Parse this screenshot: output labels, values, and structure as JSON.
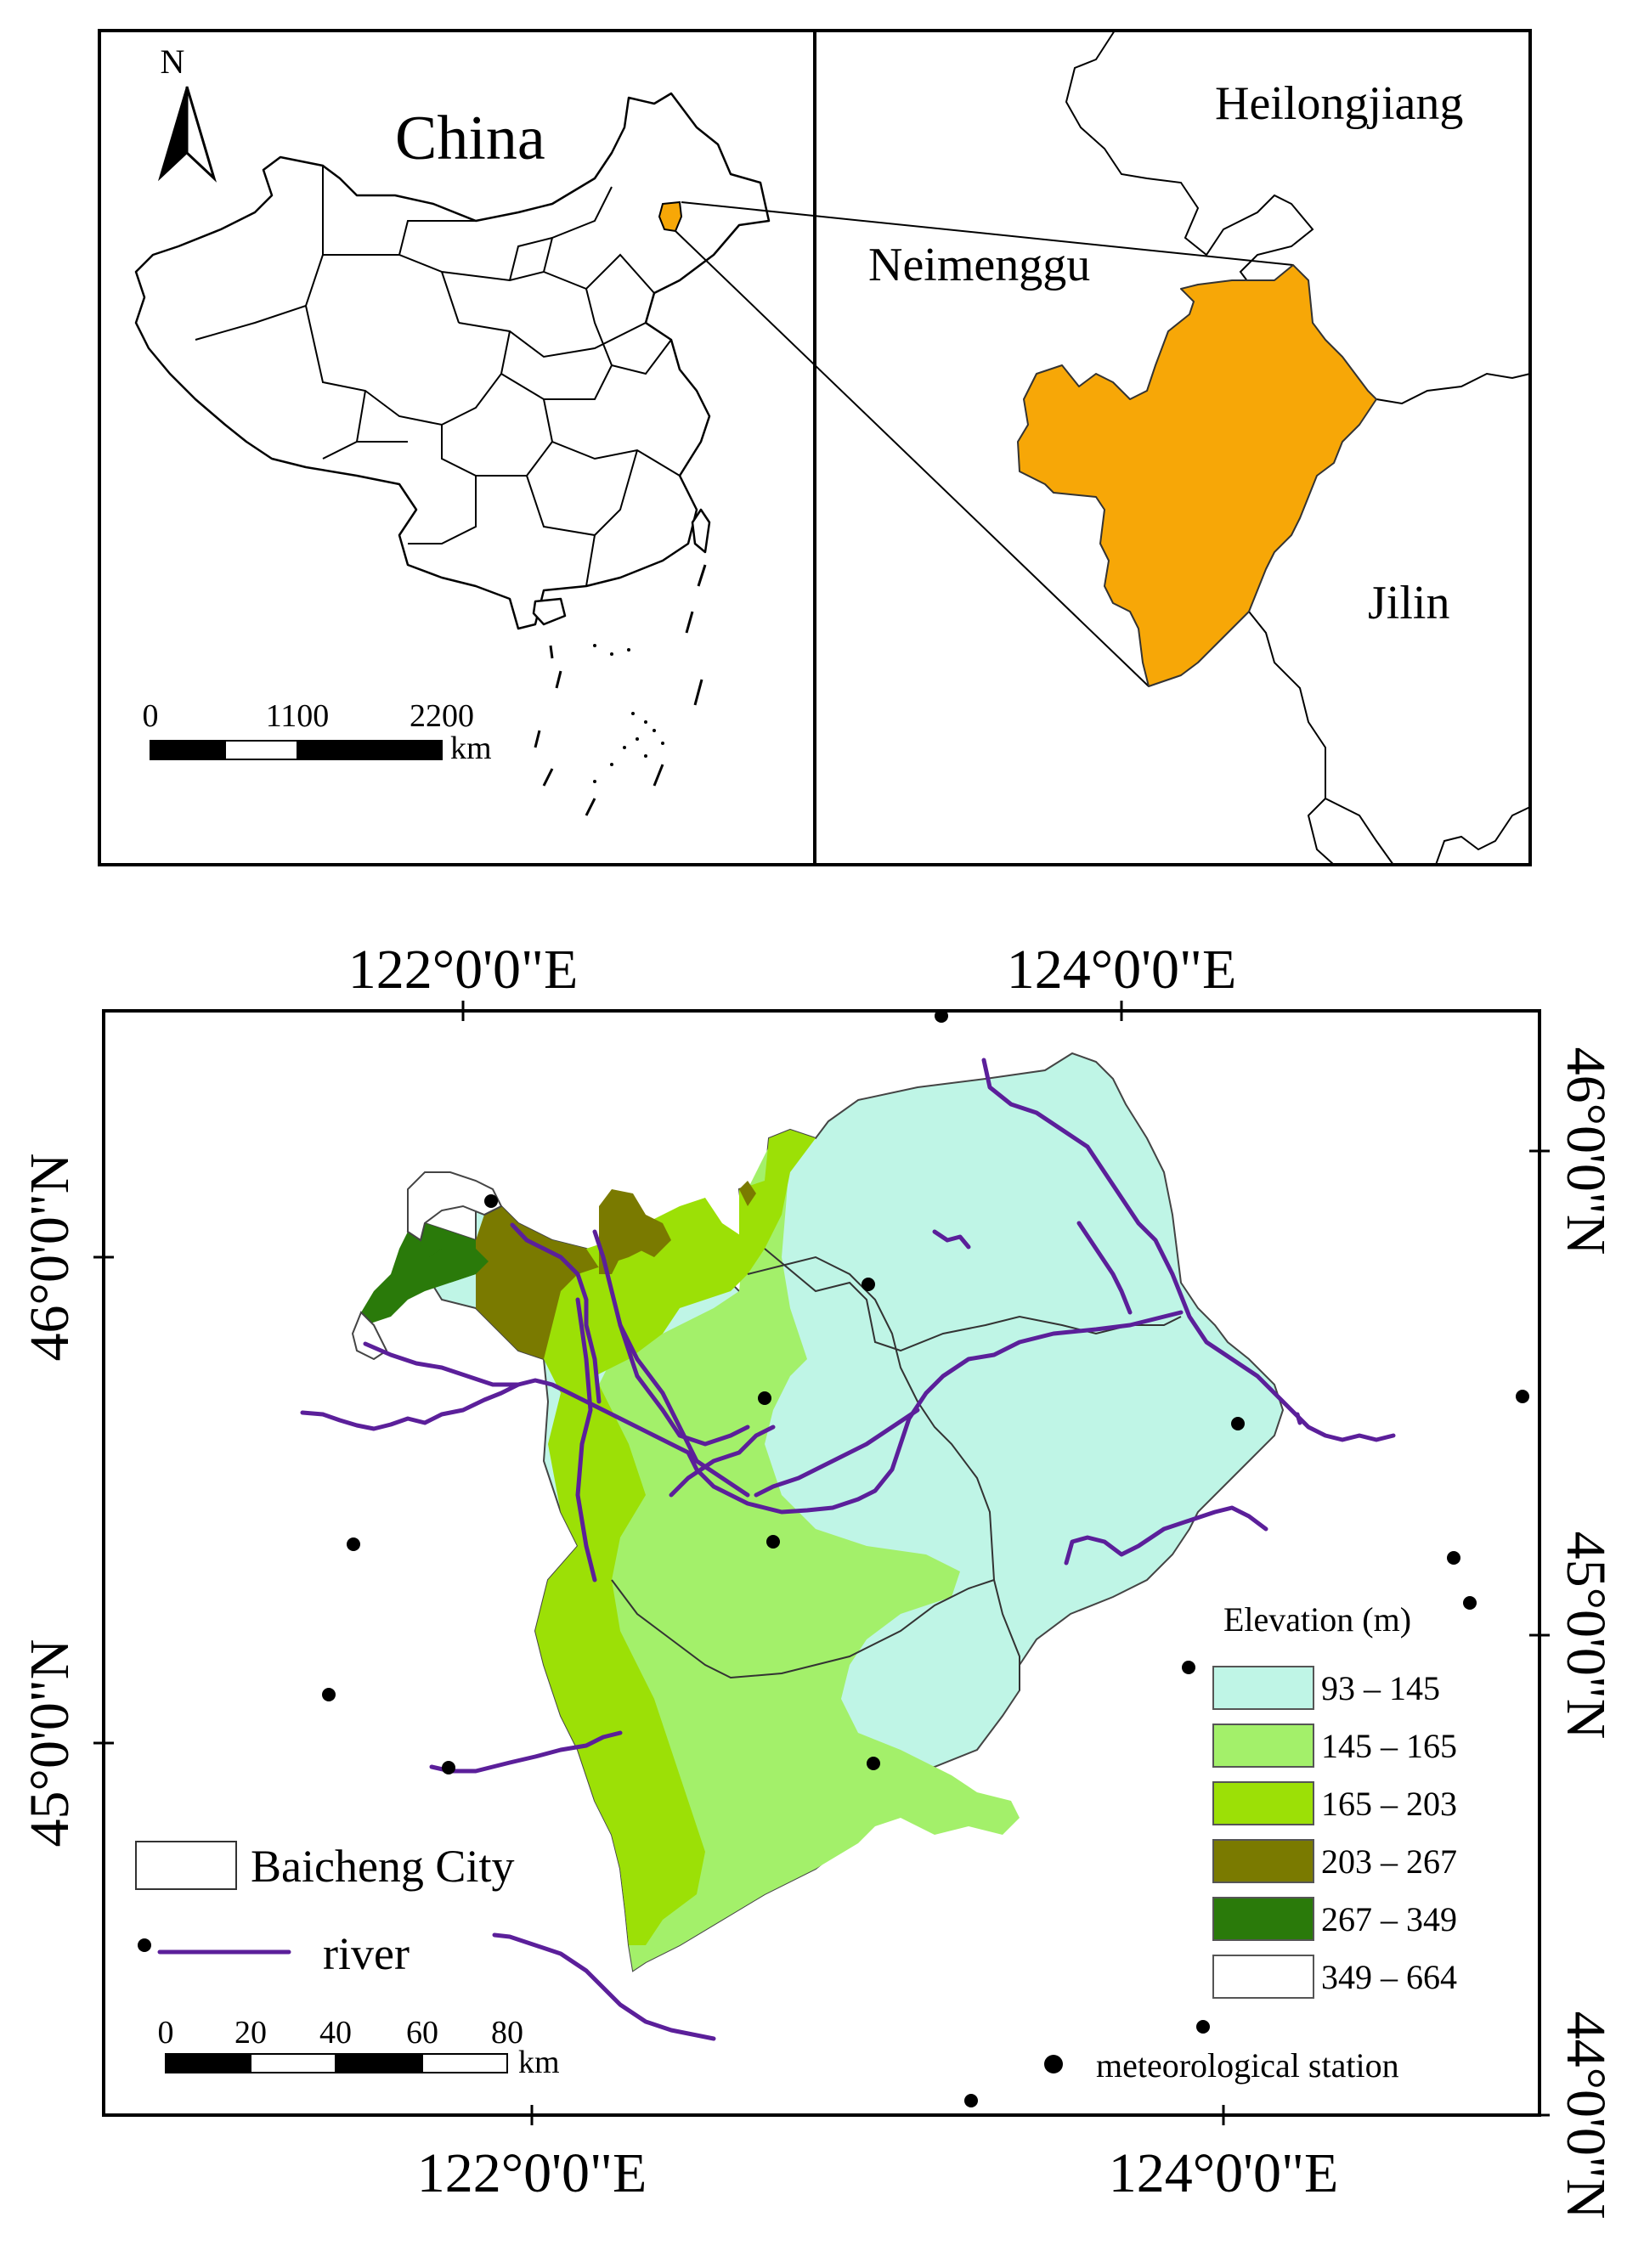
{
  "inset_china": {
    "title": "China",
    "north_label": "N",
    "scale_ticks": [
      "0",
      "1100",
      "2200"
    ],
    "scale_unit": "km"
  },
  "inset_region": {
    "labels": {
      "heilongjiang": "Heilongjiang",
      "neimenggu": "Neimenggu",
      "jilin": "Jilin"
    },
    "highlight_color": "#F7A707"
  },
  "main_map": {
    "top_lon_labels": [
      "122°0'0\"E",
      "124°0'0\"E"
    ],
    "bottom_lon_labels": [
      "122°0'0\"E",
      "124°0'0\"E"
    ],
    "left_lat_labels": [
      "46°0'0\"N",
      "45°0'0\"N"
    ],
    "right_lat_labels": [
      "46°0'0\"N",
      "45°0'0\"N",
      "44°0'0\"N"
    ],
    "legend": {
      "title": "Elevation (m)",
      "classes": [
        {
          "label": "93 – 145",
          "color": "#BFF5E6"
        },
        {
          "label": "145 – 165",
          "color": "#A3F06A"
        },
        {
          "label": "165 – 203",
          "color": "#9CE006"
        },
        {
          "label": "203 – 267",
          "color": "#7A7A00"
        },
        {
          "label": "267 – 349",
          "color": "#2A7A0A"
        },
        {
          "label": "349 – 664",
          "color": "#FFFFFF"
        }
      ],
      "station_label": "meteorological station"
    },
    "city_label": "Baicheng City",
    "river_label": "river",
    "river_color": "#5B1F9A",
    "scale_ticks": [
      "0",
      "20",
      "40",
      "60",
      "80"
    ],
    "scale_unit": "km"
  }
}
